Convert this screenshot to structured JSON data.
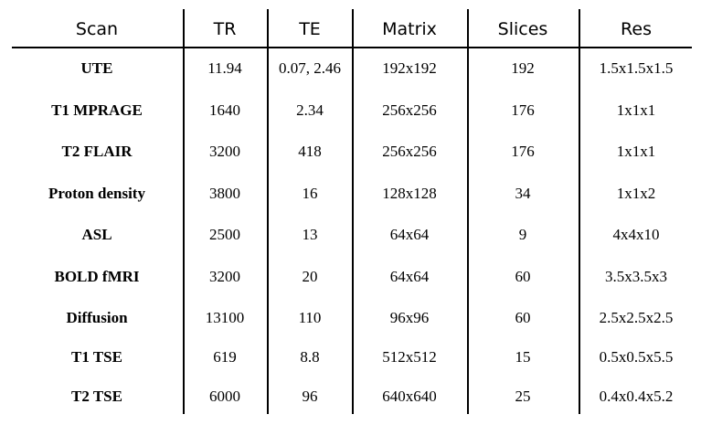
{
  "table": {
    "header": [
      "Scan",
      "TR",
      "TE",
      "Matrix",
      "Slices",
      "Res"
    ],
    "rows": [
      [
        "UTE",
        "11.94",
        "0.07, 2.46",
        "192x192",
        "192",
        "1.5x1.5x1.5"
      ],
      [
        "T1 MPRAGE",
        "1640",
        "2.34",
        "256x256",
        "176",
        "1x1x1"
      ],
      [
        "T2 FLAIR",
        "3200",
        "418",
        "256x256",
        "176",
        "1x1x1"
      ],
      [
        "Proton density",
        "3800",
        "16",
        "128x128",
        "34",
        "1x1x2"
      ],
      [
        "ASL",
        "2500",
        "13",
        "64x64",
        "9",
        "4x4x10"
      ],
      [
        "BOLD fMRI",
        "3200",
        "20",
        "64x64",
        "60",
        "3.5x3.5x3"
      ],
      [
        "Diffusion",
        "13100",
        "110",
        "96x96",
        "60",
        "2.5x2.5x2.5"
      ],
      [
        "T1 TSE",
        "619",
        "8.8",
        "512x512",
        "15",
        "0.5x0.5x5.5"
      ],
      [
        "T2 TSE",
        "6000",
        "96",
        "640x640",
        "25",
        "0.4x0.4x5.2"
      ]
    ]
  }
}
